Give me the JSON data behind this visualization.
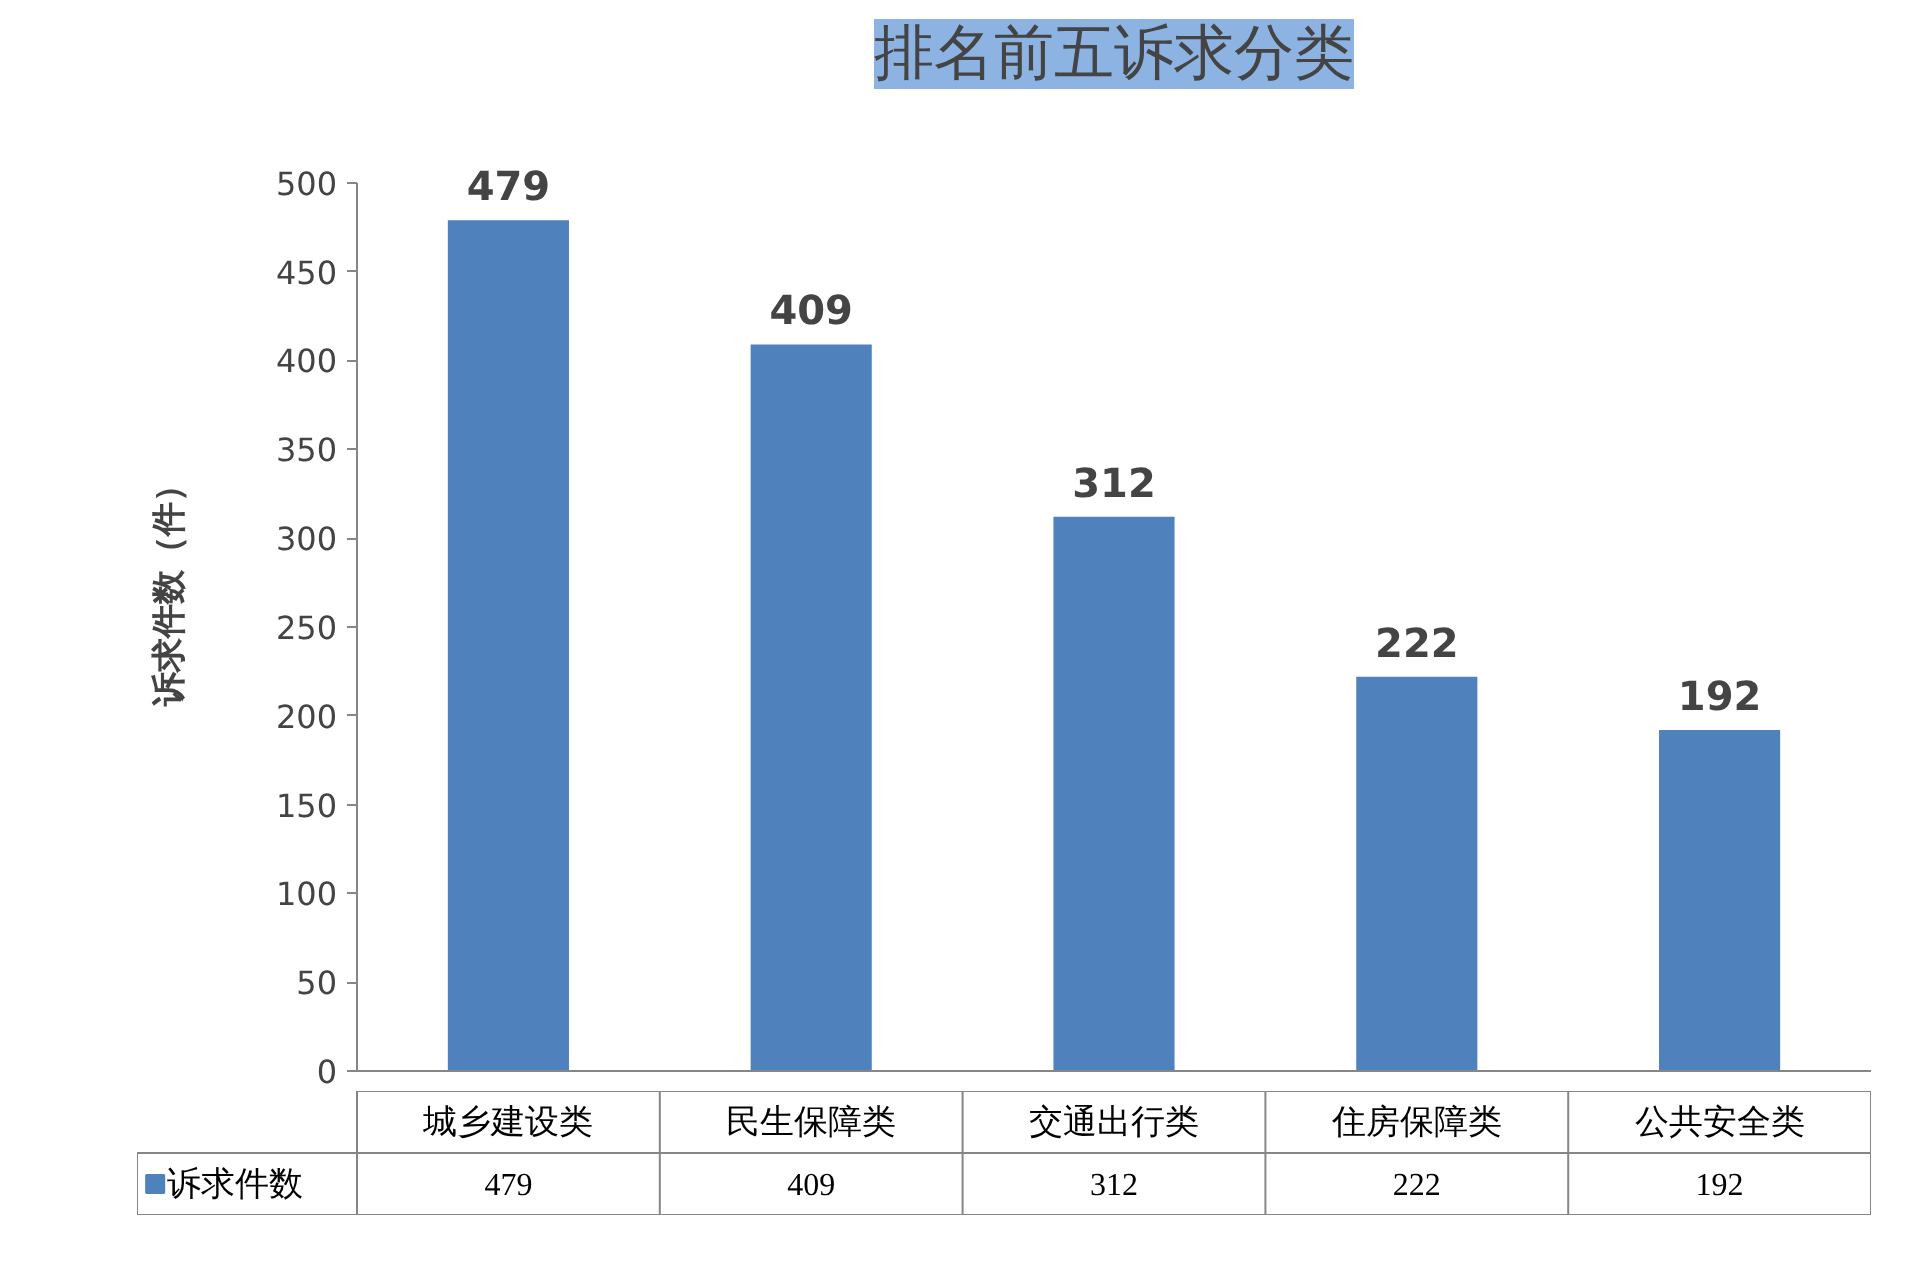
{
  "chart_data": {
    "type": "bar",
    "title": "排名前五诉求分类",
    "ylabel": "诉求件数（件）",
    "categories": [
      "城乡建设类",
      "民生保障类",
      "交通出行类",
      "住房保障类",
      "公共安全类"
    ],
    "series": [
      {
        "name": "诉求件数",
        "color": "#4f81bd",
        "values": [
          479,
          409,
          312,
          222,
          192
        ]
      }
    ],
    "ylim": [
      0,
      500
    ],
    "yticks": [
      0,
      50,
      100,
      150,
      200,
      250,
      300,
      350,
      400,
      450,
      500
    ],
    "annotations": [
      {
        "text": "479",
        "x": "城乡建设类",
        "y": 479
      },
      {
        "text": "409",
        "x": "民生保障类",
        "y": 409
      },
      {
        "text": "312",
        "x": "交通出行类",
        "y": 312
      },
      {
        "text": "222",
        "x": "住房保障类",
        "y": 222
      },
      {
        "text": "192",
        "x": "公共安全类",
        "y": 192
      }
    ],
    "data_labels": true,
    "grid": false,
    "legend": "bottom"
  }
}
